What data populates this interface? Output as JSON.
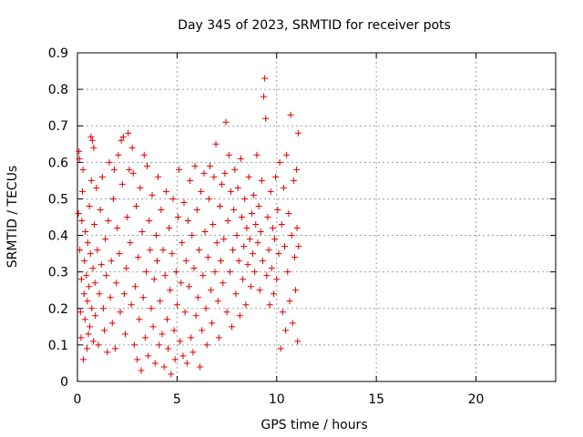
{
  "chart_data": {
    "type": "scatter",
    "title": "Day 345 of 2023, SRMTID for receiver pots",
    "xlabel": "GPS time / hours",
    "ylabel": "SRMTID / TECUs",
    "xlim": [
      0,
      24
    ],
    "ylim": [
      0,
      0.9
    ],
    "x_ticks": [
      0,
      5,
      10,
      15,
      20
    ],
    "x_tick_labels": [
      "0",
      "5",
      "10",
      "15",
      "20"
    ],
    "y_ticks": [
      0,
      0.1,
      0.2,
      0.3,
      0.4,
      0.5,
      0.6,
      0.7,
      0.8,
      0.9
    ],
    "y_tick_labels": [
      "0",
      "0.1",
      "0.2",
      "0.3",
      "0.4",
      "0.5",
      "0.6",
      "0.7",
      "0.8",
      "0.9"
    ],
    "grid": true,
    "marker": "+",
    "series": [
      {
        "name": "SRMTID",
        "color": "#dd0000",
        "points": [
          [
            0.05,
            0.46
          ],
          [
            0.08,
            0.63
          ],
          [
            0.1,
            0.61
          ],
          [
            0.12,
            0.36
          ],
          [
            0.15,
            0.19
          ],
          [
            0.18,
            0.12
          ],
          [
            0.2,
            0.28
          ],
          [
            0.22,
            0.44
          ],
          [
            0.25,
            0.52
          ],
          [
            0.28,
            0.58
          ],
          [
            0.3,
            0.06
          ],
          [
            0.33,
            0.24
          ],
          [
            0.35,
            0.33
          ],
          [
            0.38,
            0.17
          ],
          [
            0.4,
            0.41
          ],
          [
            0.45,
            0.29
          ],
          [
            0.48,
            0.09
          ],
          [
            0.5,
            0.22
          ],
          [
            0.52,
            0.38
          ],
          [
            0.55,
            0.13
          ],
          [
            0.58,
            0.26
          ],
          [
            0.6,
            0.48
          ],
          [
            0.62,
            0.15
          ],
          [
            0.65,
            0.35
          ],
          [
            0.68,
            0.67
          ],
          [
            0.7,
            0.55
          ],
          [
            0.72,
            0.2
          ],
          [
            0.75,
            0.66
          ],
          [
            0.78,
            0.31
          ],
          [
            0.8,
            0.11
          ],
          [
            0.82,
            0.64
          ],
          [
            0.85,
            0.43
          ],
          [
            0.88,
            0.27
          ],
          [
            0.9,
            0.18
          ],
          [
            0.95,
            0.53
          ],
          [
            1.0,
            0.36
          ],
          [
            1.05,
            0.1
          ],
          [
            1.1,
            0.24
          ],
          [
            1.15,
            0.47
          ],
          [
            1.2,
            0.32
          ],
          [
            1.25,
            0.56
          ],
          [
            1.3,
            0.2
          ],
          [
            1.35,
            0.14
          ],
          [
            1.4,
            0.39
          ],
          [
            1.45,
            0.29
          ],
          [
            1.5,
            0.08
          ],
          [
            1.55,
            0.44
          ],
          [
            1.6,
            0.6
          ],
          [
            1.65,
            0.23
          ],
          [
            1.7,
            0.33
          ],
          [
            1.75,
            0.16
          ],
          [
            1.8,
            0.5
          ],
          [
            1.85,
            0.58
          ],
          [
            1.9,
            0.09
          ],
          [
            1.95,
            0.27
          ],
          [
            2.0,
            0.42
          ],
          [
            2.05,
            0.62
          ],
          [
            2.1,
            0.35
          ],
          [
            2.15,
            0.19
          ],
          [
            2.2,
            0.66
          ],
          [
            2.25,
            0.54
          ],
          [
            2.3,
            0.67
          ],
          [
            2.35,
            0.24
          ],
          [
            2.4,
            0.13
          ],
          [
            2.45,
            0.31
          ],
          [
            2.5,
            0.45
          ],
          [
            2.55,
            0.68
          ],
          [
            2.6,
            0.58
          ],
          [
            2.65,
            0.38
          ],
          [
            2.7,
            0.21
          ],
          [
            2.75,
            0.64
          ],
          [
            2.8,
            0.57
          ],
          [
            2.85,
            0.1
          ],
          [
            2.9,
            0.26
          ],
          [
            2.95,
            0.48
          ],
          [
            3.0,
            0.06
          ],
          [
            3.05,
            0.34
          ],
          [
            3.1,
            0.17
          ],
          [
            3.15,
            0.53
          ],
          [
            3.2,
            0.03
          ],
          [
            3.25,
            0.41
          ],
          [
            3.3,
            0.23
          ],
          [
            3.35,
            0.62
          ],
          [
            3.4,
            0.12
          ],
          [
            3.45,
            0.3
          ],
          [
            3.5,
            0.59
          ],
          [
            3.55,
            0.07
          ],
          [
            3.6,
            0.44
          ],
          [
            3.65,
            0.36
          ],
          [
            3.7,
            0.2
          ],
          [
            3.75,
            0.51
          ],
          [
            3.8,
            0.15
          ],
          [
            3.85,
            0.28
          ],
          [
            3.9,
            0.05
          ],
          [
            3.95,
            0.4
          ],
          [
            4.0,
            0.33
          ],
          [
            4.05,
            0.56
          ],
          [
            4.1,
            0.1
          ],
          [
            4.15,
            0.22
          ],
          [
            4.2,
            0.47
          ],
          [
            4.25,
            0.13
          ],
          [
            4.3,
            0.36
          ],
          [
            4.35,
            0.04
          ],
          [
            4.4,
            0.29
          ],
          [
            4.45,
            0.52
          ],
          [
            4.5,
            0.17
          ],
          [
            4.55,
            0.09
          ],
          [
            4.6,
            0.42
          ],
          [
            4.65,
            0.25
          ],
          [
            4.7,
            0.02
          ],
          [
            4.75,
            0.35
          ],
          [
            4.8,
            0.5
          ],
          [
            4.85,
            0.14
          ],
          [
            4.9,
            0.06
          ],
          [
            4.95,
            0.3
          ],
          [
            5.0,
            0.21
          ],
          [
            5.05,
            0.45
          ],
          [
            5.1,
            0.58
          ],
          [
            5.15,
            0.11
          ],
          [
            5.2,
            0.27
          ],
          [
            5.25,
            0.38
          ],
          [
            5.3,
            0.07
          ],
          [
            5.35,
            0.49
          ],
          [
            5.4,
            0.19
          ],
          [
            5.45,
            0.33
          ],
          [
            5.5,
            0.05
          ],
          [
            5.55,
            0.44
          ],
          [
            5.6,
            0.26
          ],
          [
            5.65,
            0.55
          ],
          [
            5.7,
            0.12
          ],
          [
            5.75,
            0.4
          ],
          [
            5.8,
            0.08
          ],
          [
            5.85,
            0.31
          ],
          [
            5.9,
            0.59
          ],
          [
            5.95,
            0.18
          ],
          [
            6.0,
            0.47
          ],
          [
            6.05,
            0.23
          ],
          [
            6.1,
            0.36
          ],
          [
            6.15,
            0.04
          ],
          [
            6.2,
            0.52
          ],
          [
            6.25,
            0.14
          ],
          [
            6.3,
            0.29
          ],
          [
            6.35,
            0.57
          ],
          [
            6.4,
            0.41
          ],
          [
            6.45,
            0.2
          ],
          [
            6.5,
            0.1
          ],
          [
            6.55,
            0.34
          ],
          [
            6.6,
            0.5
          ],
          [
            6.65,
            0.59
          ],
          [
            6.7,
            0.25
          ],
          [
            6.75,
            0.16
          ],
          [
            6.8,
            0.43
          ],
          [
            6.85,
            0.56
          ],
          [
            6.9,
            0.3
          ],
          [
            6.95,
            0.65
          ],
          [
            7.0,
            0.38
          ],
          [
            7.05,
            0.22
          ],
          [
            7.1,
            0.12
          ],
          [
            7.15,
            0.48
          ],
          [
            7.2,
            0.33
          ],
          [
            7.25,
            0.54
          ],
          [
            7.3,
            0.27
          ],
          [
            7.35,
            0.39
          ],
          [
            7.4,
            0.57
          ],
          [
            7.45,
            0.71
          ],
          [
            7.5,
            0.19
          ],
          [
            7.55,
            0.44
          ],
          [
            7.6,
            0.62
          ],
          [
            7.65,
            0.3
          ],
          [
            7.7,
            0.52
          ],
          [
            7.75,
            0.15
          ],
          [
            7.8,
            0.36
          ],
          [
            7.85,
            0.47
          ],
          [
            7.9,
            0.58
          ],
          [
            7.95,
            0.24
          ],
          [
            8.0,
            0.4
          ],
          [
            8.05,
            0.53
          ],
          [
            8.1,
            0.33
          ],
          [
            8.15,
            0.18
          ],
          [
            8.2,
            0.61
          ],
          [
            8.25,
            0.45
          ],
          [
            8.3,
            0.28
          ],
          [
            8.35,
            0.37
          ],
          [
            8.4,
            0.5
          ],
          [
            8.45,
            0.21
          ],
          [
            8.5,
            0.42
          ],
          [
            8.55,
            0.32
          ],
          [
            8.6,
            0.56
          ],
          [
            8.65,
            0.39
          ],
          [
            8.7,
            0.26
          ],
          [
            8.75,
            0.46
          ],
          [
            8.8,
            0.35
          ],
          [
            8.85,
            0.51
          ],
          [
            8.9,
            0.3
          ],
          [
            8.95,
            0.43
          ],
          [
            9.0,
            0.62
          ],
          [
            9.05,
            0.38
          ],
          [
            9.1,
            0.48
          ],
          [
            9.15,
            0.25
          ],
          [
            9.2,
            0.41
          ],
          [
            9.25,
            0.55
          ],
          [
            9.3,
            0.33
          ],
          [
            9.35,
            0.78
          ],
          [
            9.4,
            0.83
          ],
          [
            9.45,
            0.72
          ],
          [
            9.5,
            0.29
          ],
          [
            9.55,
            0.45
          ],
          [
            9.6,
            0.36
          ],
          [
            9.65,
            0.21
          ],
          [
            9.7,
            0.52
          ],
          [
            9.75,
            0.31
          ],
          [
            9.8,
            0.42
          ],
          [
            9.85,
            0.24
          ],
          [
            9.9,
            0.39
          ],
          [
            9.95,
            0.56
          ],
          [
            10.0,
            0.28
          ],
          [
            10.05,
            0.47
          ],
          [
            10.1,
            0.35
          ],
          [
            10.15,
            0.6
          ],
          [
            10.2,
            0.09
          ],
          [
            10.25,
            0.43
          ],
          [
            10.3,
            0.19
          ],
          [
            10.35,
            0.53
          ],
          [
            10.4,
            0.37
          ],
          [
            10.45,
            0.14
          ],
          [
            10.5,
            0.62
          ],
          [
            10.55,
            0.3
          ],
          [
            10.6,
            0.46
          ],
          [
            10.65,
            0.22
          ],
          [
            10.7,
            0.73
          ],
          [
            10.75,
            0.4
          ],
          [
            10.8,
            0.16
          ],
          [
            10.85,
            0.55
          ],
          [
            10.9,
            0.34
          ],
          [
            10.95,
            0.25
          ],
          [
            11.0,
            0.58
          ],
          [
            11.02,
            0.42
          ],
          [
            11.05,
            0.11
          ],
          [
            11.08,
            0.68
          ],
          [
            11.1,
            0.37
          ]
        ]
      }
    ]
  }
}
